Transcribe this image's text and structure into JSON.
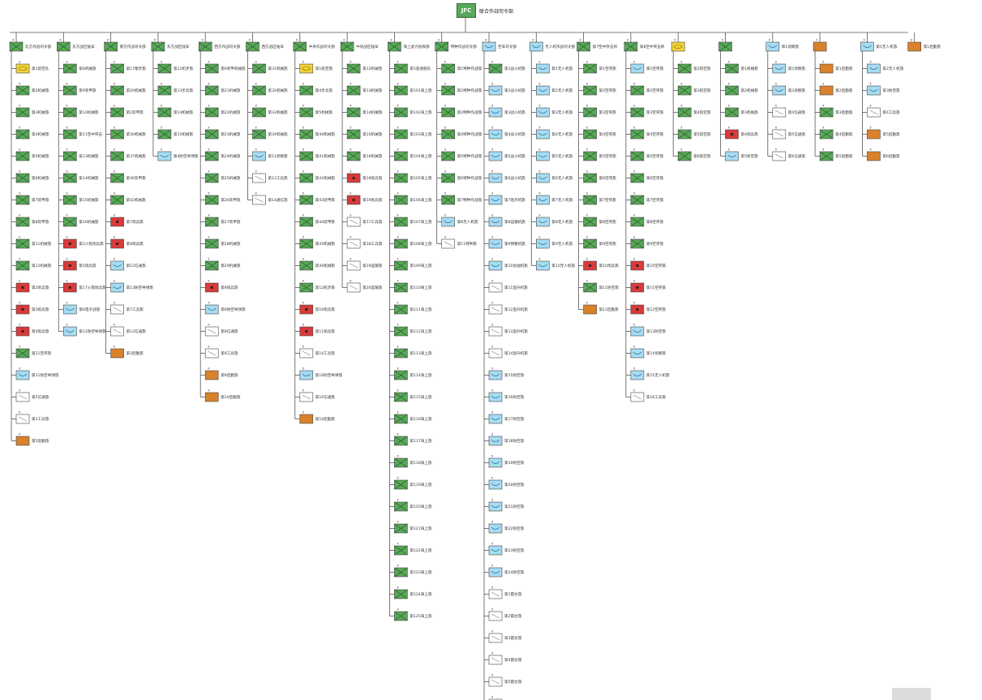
{
  "root": {
    "code": "JFC",
    "label": "联合作战司令部",
    "color": "#5aa85a"
  },
  "footer": "",
  "colors": {
    "green": "#5aa85a",
    "yellow": "#f2d43a",
    "red": "#d93a3a",
    "blue": "#a7dcf3",
    "orange": "#d9822b",
    "white": "#ffffff"
  },
  "columns": [
    {
      "head": "北方作战司令部",
      "headColor": "green",
      "units": [
        [
          "第1航空队",
          "yellow"
        ],
        [
          "第2机械旅",
          "green"
        ],
        [
          "第3机械旅",
          "green"
        ],
        [
          "第4机械旅",
          "green"
        ],
        [
          "第5机械旅",
          "green"
        ],
        [
          "第6机械旅",
          "green"
        ],
        [
          "第7装甲旅",
          "green"
        ],
        [
          "第8装甲旅",
          "green"
        ],
        [
          "第11机械旅",
          "green"
        ],
        [
          "第12机械旅",
          "green"
        ],
        [
          "第2炮兵旅",
          "red"
        ],
        [
          "第3炮兵旅",
          "red"
        ],
        [
          "第4炮兵旅",
          "red"
        ],
        [
          "第21空突旅",
          "green"
        ],
        [
          "第11防空导弹旅",
          "blue"
        ],
        [
          "第5信通旅",
          "white"
        ],
        [
          "第1工兵旅",
          "white"
        ],
        [
          "第5后勤旅",
          "orange"
        ]
      ]
    },
    {
      "head": "东方战区陆军",
      "headColor": "green",
      "units": [
        [
          "第8机械旅",
          "green"
        ],
        [
          "第9装甲旅",
          "green"
        ],
        [
          "第10机械旅",
          "green"
        ],
        [
          "第11空中突击",
          "green"
        ],
        [
          "第13机械旅",
          "green"
        ],
        [
          "第14机械旅",
          "green"
        ],
        [
          "第15机械旅",
          "green"
        ],
        [
          "第16机械旅",
          "green"
        ],
        [
          "第2火箭炮兵旅",
          "red"
        ],
        [
          "第5炮兵旅",
          "red"
        ],
        [
          "第17火箭炮兵旅",
          "red"
        ],
        [
          "第6电子战旅",
          "blue"
        ],
        [
          "第12防空导弹旅",
          "blue"
        ]
      ]
    },
    {
      "head": "南方作战司令部",
      "headColor": "green",
      "units": [
        [
          "第17摩步旅",
          "green"
        ],
        [
          "第20机械旅",
          "green"
        ],
        [
          "第2装甲旅",
          "green"
        ],
        [
          "第30机械旅",
          "green"
        ],
        [
          "第37机械旅",
          "green"
        ],
        [
          "第40装甲旅",
          "green"
        ],
        [
          "第42机械旅",
          "green"
        ],
        [
          "第7炮兵旅",
          "red"
        ],
        [
          "第8炮兵旅",
          "red"
        ],
        [
          "第12信通旅",
          "blue"
        ],
        [
          "第13防空导弹旅",
          "blue"
        ],
        [
          "第7工兵旅",
          "white"
        ],
        [
          "第12信通旅",
          "white"
        ],
        [
          "第3后勤旅",
          "orange"
        ]
      ]
    },
    {
      "head": "东方战区陆军",
      "headColor": "green",
      "units": [
        [
          "第12机步旅",
          "green"
        ],
        [
          "第13步兵旅",
          "green"
        ],
        [
          "第14机械旅",
          "green"
        ],
        [
          "第15机械旅",
          "green"
        ],
        [
          "第4防空导弹旅",
          "blue"
        ]
      ]
    },
    {
      "head": "西方作战司令部",
      "headColor": "green",
      "units": [
        [
          "第9装甲机械旅",
          "green"
        ],
        [
          "第21机械旅",
          "green"
        ],
        [
          "第22机械旅",
          "green"
        ],
        [
          "第23机械旅",
          "green"
        ],
        [
          "第24机械旅",
          "green"
        ],
        [
          "第25机械旅",
          "green"
        ],
        [
          "第26装甲旅",
          "green"
        ],
        [
          "第27装甲旅",
          "green"
        ],
        [
          "第28机械旅",
          "green"
        ],
        [
          "第29机械旅",
          "green"
        ],
        [
          "第9炮兵旅",
          "red"
        ],
        [
          "第9防空导弹旅",
          "blue"
        ],
        [
          "第9信通旅",
          "white"
        ],
        [
          "第9工兵旅",
          "white"
        ],
        [
          "第9后勤旅",
          "orange"
        ],
        [
          "第10后勤旅",
          "orange"
        ]
      ]
    },
    {
      "head": "西方战区陆军",
      "headColor": "green",
      "units": [
        [
          "第31机械旅",
          "green"
        ],
        [
          "第32机械旅",
          "green"
        ],
        [
          "第33机械旅",
          "green"
        ],
        [
          "第34机械旅",
          "green"
        ],
        [
          "第11侦察旅",
          "blue"
        ],
        [
          "第13工兵旅",
          "white"
        ],
        [
          "第14通信旅",
          "white"
        ]
      ]
    },
    {
      "head": "中央作战司令部",
      "headColor": "green",
      "units": [
        [
          "第1航空旅",
          "yellow"
        ],
        [
          "第4步兵旅",
          "green"
        ],
        [
          "第5机械旅",
          "green"
        ],
        [
          "第40机械旅",
          "green"
        ],
        [
          "第41机械旅",
          "green"
        ],
        [
          "第42机械旅",
          "green"
        ],
        [
          "第43装甲旅",
          "green"
        ],
        [
          "第44装甲旅",
          "green"
        ],
        [
          "第45机械旅",
          "green"
        ],
        [
          "第46机械旅",
          "green"
        ],
        [
          "第12机步旅",
          "green"
        ],
        [
          "第10炮兵旅",
          "red"
        ],
        [
          "第11炮兵旅",
          "red"
        ],
        [
          "第10工兵旅",
          "white"
        ],
        [
          "第10防空导弹旅",
          "blue"
        ],
        [
          "第10信通旅",
          "white"
        ],
        [
          "第10后勤旅",
          "orange"
        ]
      ]
    },
    {
      "head": "中央战区陆军",
      "headColor": "green",
      "units": [
        [
          "第12机械旅",
          "green"
        ],
        [
          "第13机械旅",
          "green"
        ],
        [
          "第14机械旅",
          "green"
        ],
        [
          "第15机械旅",
          "green"
        ],
        [
          "第16机械旅",
          "green"
        ],
        [
          "第18炮兵旅",
          "red"
        ],
        [
          "第19炮兵旅",
          "red"
        ],
        [
          "第17工兵旅",
          "white"
        ],
        [
          "第18工兵旅",
          "white"
        ],
        [
          "第19运输旅",
          "white"
        ],
        [
          "第20运输旅",
          "white"
        ]
      ]
    },
    {
      "head": "海上武力指挥部",
      "headColor": "green",
      "units": [
        [
          "第1驱逐舰队",
          "green"
        ],
        [
          "第101海上旅",
          "green"
        ],
        [
          "第102海上旅",
          "green"
        ],
        [
          "第103海上旅",
          "green"
        ],
        [
          "第104海上旅",
          "green"
        ],
        [
          "第105海上旅",
          "green"
        ],
        [
          "第106海上旅",
          "green"
        ],
        [
          "第107海上旅",
          "green"
        ],
        [
          "第108海上旅",
          "green"
        ],
        [
          "第109海上旅",
          "green"
        ],
        [
          "第110海上旅",
          "green"
        ],
        [
          "第111海上旅",
          "green"
        ],
        [
          "第112海上旅",
          "green"
        ],
        [
          "第113海上旅",
          "green"
        ],
        [
          "第114海上旅",
          "green"
        ],
        [
          "第115海上旅",
          "green"
        ],
        [
          "第116海上旅",
          "green"
        ],
        [
          "第117海上旅",
          "green"
        ],
        [
          "第118海上旅",
          "green"
        ],
        [
          "第119海上旅",
          "green"
        ],
        [
          "第120海上旅",
          "green"
        ],
        [
          "第121海上旅",
          "green"
        ],
        [
          "第122海上旅",
          "green"
        ],
        [
          "第123海上旅",
          "green"
        ],
        [
          "第124海上旅",
          "green"
        ],
        [
          "第125海上旅",
          "green"
        ]
      ]
    },
    {
      "head": "特种作战司令部",
      "headColor": "green",
      "units": [
        [
          "第1特种作战旅",
          "green"
        ],
        [
          "第2特种作战旅",
          "green"
        ],
        [
          "第3特种作战旅",
          "green"
        ],
        [
          "第4特种作战旅",
          "green"
        ],
        [
          "第5特种作战旅",
          "green"
        ],
        [
          "第6特种作战旅",
          "green"
        ],
        [
          "第7特种作战旅",
          "green"
        ],
        [
          "第8无人机旅",
          "blue"
        ],
        [
          "第11特种旅",
          "white"
        ]
      ]
    },
    {
      "head": "空军司令部",
      "headColor": "blue",
      "units": [
        [
          "第1战斗机旅",
          "green"
        ],
        [
          "第2战斗机旅",
          "blue"
        ],
        [
          "第3战斗机旅",
          "blue"
        ],
        [
          "第4战斗机旅",
          "blue"
        ],
        [
          "第5战斗机旅",
          "blue"
        ],
        [
          "第6战斗机旅",
          "blue"
        ],
        [
          "第7轰炸机旅",
          "blue"
        ],
        [
          "第8运输机旅",
          "blue"
        ],
        [
          "第9预警机旅",
          "blue"
        ],
        [
          "第10加油机旅",
          "blue"
        ],
        [
          "第11直升机旅",
          "white"
        ],
        [
          "第12直升机旅",
          "white"
        ],
        [
          "第13直升机旅",
          "white"
        ],
        [
          "第14直升机旅",
          "white"
        ],
        [
          "第15防空旅",
          "blue"
        ],
        [
          "第16防空旅",
          "blue"
        ],
        [
          "第17防空旅",
          "blue"
        ],
        [
          "第18防空旅",
          "blue"
        ],
        [
          "第19防空旅",
          "blue"
        ],
        [
          "第20防空旅",
          "blue"
        ],
        [
          "第21防空旅",
          "blue"
        ],
        [
          "第22防空旅",
          "blue"
        ],
        [
          "第23防空旅",
          "blue"
        ],
        [
          "第24防空旅",
          "blue"
        ],
        [
          "第1雷达旅",
          "white"
        ],
        [
          "第2雷达旅",
          "white"
        ],
        [
          "第3雷达旅",
          "white"
        ],
        [
          "第4雷达旅",
          "white"
        ],
        [
          "第5雷达旅",
          "white"
        ],
        [
          "第6雷达旅",
          "white"
        ],
        [
          "第7雷达旅",
          "white"
        ]
      ]
    },
    {
      "head": "无人机作战司令部",
      "headColor": "blue",
      "units": [
        [
          "第1无人机旅",
          "blue"
        ],
        [
          "第2无人机旅",
          "blue"
        ],
        [
          "第3无人机旅",
          "blue"
        ],
        [
          "第4无人机旅",
          "blue"
        ],
        [
          "第5无人机旅",
          "blue"
        ],
        [
          "第6无人机旅",
          "blue"
        ],
        [
          "第7无人机旅",
          "blue"
        ],
        [
          "第8无人机旅",
          "blue"
        ],
        [
          "第9无人机旅",
          "blue"
        ],
        [
          "第10无人机旅",
          "blue"
        ]
      ]
    },
    {
      "head": "第7空中突击师",
      "headColor": "green",
      "units": [
        [
          "第1空突旅",
          "green"
        ],
        [
          "第2空突旅",
          "green"
        ],
        [
          "第3空突旅",
          "green"
        ],
        [
          "第4空突旅",
          "green"
        ],
        [
          "第5空突旅",
          "green"
        ],
        [
          "第6空突旅",
          "green"
        ],
        [
          "第7空突旅",
          "green"
        ],
        [
          "第8空突旅",
          "green"
        ],
        [
          "第9空突旅",
          "green"
        ],
        [
          "第10炮兵旅",
          "red"
        ],
        [
          "第11防空旅",
          "green"
        ],
        [
          "第12后勤旅",
          "orange"
        ]
      ]
    },
    {
      "head": "第8空中突击师",
      "headColor": "green",
      "units": [
        [
          "第1空突旅",
          "blue"
        ],
        [
          "第2空突旅",
          "green"
        ],
        [
          "第3空突旅",
          "green"
        ],
        [
          "第4空突旅",
          "green"
        ],
        [
          "第5空突旅",
          "green"
        ],
        [
          "第6空突旅",
          "green"
        ],
        [
          "第7空突旅",
          "green"
        ],
        [
          "第8空突旅",
          "green"
        ],
        [
          "第9空突旅",
          "green"
        ],
        [
          "第10空突旅",
          "red"
        ],
        [
          "第11空突旅",
          "red"
        ],
        [
          "第12空突旅",
          "red"
        ],
        [
          "第13防空旅",
          "blue"
        ],
        [
          "第14侦察旅",
          "blue"
        ],
        [
          "第15无人机旅",
          "blue"
        ],
        [
          "第16工兵旅",
          "white"
        ]
      ]
    },
    {
      "head": "",
      "headColor": "yellow",
      "units": [
        [
          "第2航空旅",
          "green"
        ],
        [
          "第3航空旅",
          "green"
        ],
        [
          "第4航空旅",
          "green"
        ],
        [
          "第5航空旅",
          "green"
        ],
        [
          "第6航空旅",
          "green"
        ]
      ]
    },
    {
      "head": "",
      "headColor": "green",
      "units": [
        [
          "第1机械旅",
          "green"
        ],
        [
          "第2机械旅",
          "green"
        ],
        [
          "第3机械旅",
          "green"
        ],
        [
          "第4炮兵旅",
          "red"
        ],
        [
          "第5防空旅",
          "blue"
        ]
      ]
    },
    {
      "head": "第1侦察旅",
      "headColor": "blue",
      "units": [
        [
          "第2侦察旅",
          "blue"
        ],
        [
          "第3侦察旅",
          "blue"
        ],
        [
          "第4信通旅",
          "white"
        ],
        [
          "第5信通旅",
          "white"
        ],
        [
          "第6信通旅",
          "white"
        ]
      ]
    },
    {
      "head": "",
      "headColor": "orange",
      "units": [
        [
          "第1后勤旅",
          "orange"
        ],
        [
          "第2后勤旅",
          "orange"
        ],
        [
          "第3后勤旅",
          "green"
        ],
        [
          "第4后勤旅",
          "green"
        ],
        [
          "第5后勤旅",
          "green"
        ]
      ]
    },
    {
      "head": "第1无人机旅",
      "headColor": "blue",
      "units": [
        [
          "第2无人机旅",
          "blue"
        ],
        [
          "第3防空旅",
          "blue"
        ],
        [
          "第4工兵旅",
          "white"
        ],
        [
          "第5后勤旅",
          "orange"
        ],
        [
          "第6后勤旅",
          "orange"
        ]
      ]
    },
    {
      "head": "第1后勤旅",
      "headColor": "orange",
      "units": []
    }
  ]
}
